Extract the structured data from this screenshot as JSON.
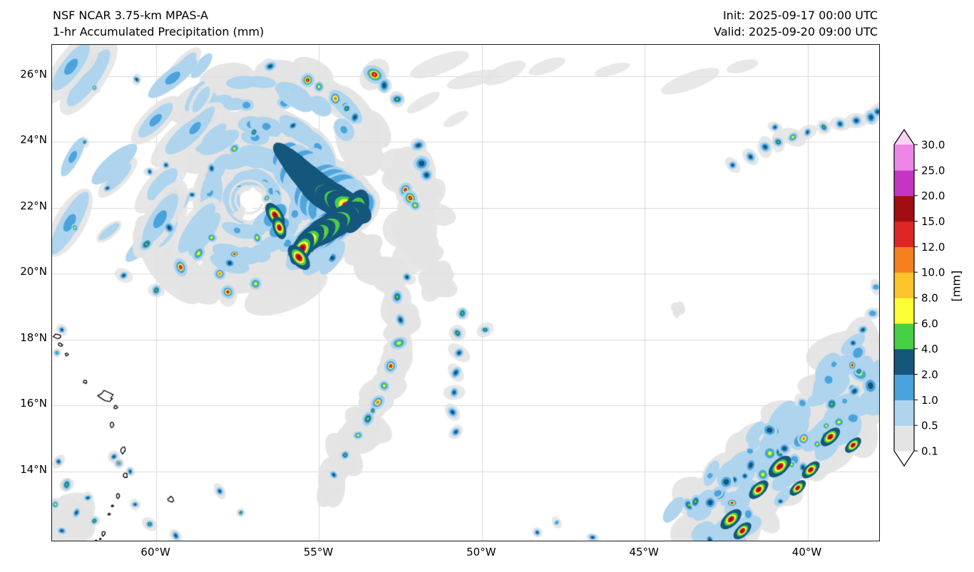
{
  "header": {
    "model_line": "NSF NCAR 3.75-km MPAS-A",
    "product_line": "1-hr Accumulated Precipitation (mm)",
    "init_line": "Init: 2025-09-17 00:00 UTC",
    "valid_line": "Valid: 2025-09-20 09:00 UTC"
  },
  "chart_data": {
    "type": "heatmap",
    "title": "1-hr Accumulated Precipitation (mm)",
    "model": "NSF NCAR 3.75-km MPAS-A",
    "init_time": "2025-09-17 00:00 UTC",
    "valid_time": "2025-09-20 09:00 UTC",
    "units": "mm",
    "xlabel": "",
    "ylabel": "",
    "grid": true,
    "grid_color": "#d9d9d9",
    "lon_range": [
      -63.2,
      -37.8
    ],
    "lat_range": [
      11.9,
      26.95
    ],
    "x_ticks": [
      {
        "lon": -60,
        "label": "60°W"
      },
      {
        "lon": -55,
        "label": "55°W"
      },
      {
        "lon": -50,
        "label": "50°W"
      },
      {
        "lon": -45,
        "label": "45°W"
      },
      {
        "lon": -40,
        "label": "40°W"
      }
    ],
    "y_ticks": [
      {
        "lat": 26,
        "label": "26°N"
      },
      {
        "lat": 24,
        "label": "24°N"
      },
      {
        "lat": 22,
        "label": "22°N"
      },
      {
        "lat": 20,
        "label": "20°N"
      },
      {
        "lat": 18,
        "label": "18°N"
      },
      {
        "lat": 16,
        "label": "16°N"
      },
      {
        "lat": 14,
        "label": "14°N"
      }
    ],
    "colorbar": {
      "label": "[mm]",
      "levels": [
        0.1,
        0.5,
        1.0,
        2.0,
        4.0,
        6.0,
        8.0,
        10.0,
        12.0,
        15.0,
        20.0,
        25.0,
        30.0
      ],
      "tick_labels": [
        "0.1",
        "0.5",
        "1.0",
        "2.0",
        "4.0",
        "6.0",
        "8.0",
        "10.0",
        "12.0",
        "15.0",
        "20.0",
        "25.0",
        "30.0"
      ],
      "colors": [
        "#e4e4e4",
        "#aed4ee",
        "#4aa3dc",
        "#15567d",
        "#45d045",
        "#fdfd35",
        "#fcc32a",
        "#f58020",
        "#e02622",
        "#a00d12",
        "#c435c4",
        "#ee86e8"
      ],
      "under_color": "#ffffff",
      "over_color": "#fad2f3",
      "position": "right"
    },
    "palette": {
      "gray": "#e4e4e4",
      "lightblue": "#aed4ee",
      "midblue": "#4aa3dc",
      "darkblue": "#15567d",
      "green": "#45d045",
      "yellow": "#fdfd35",
      "amber": "#fcc32a",
      "orange": "#f58020",
      "red": "#e02622",
      "darkred": "#a00d12",
      "magenta": "#c435c4",
      "orchid": "#ee86e8",
      "pink": "#fad2f3"
    },
    "features": {
      "summary": "Tropical cyclone near 22.3N 57.1W with eye, heavy eyewall band (15-30+ mm) ENE of center, spiral rainbands; outer band arcing south near 52-55W; scattered convection band in SE corner (38-43W, 12-17N); weak cell line near 24N 38-42W; Lesser Antilles coastlines on west edge",
      "storm_center": [
        -57.15,
        22.25
      ],
      "eye": {
        "lon": -57.15,
        "lat": 22.25,
        "r": 0.28
      },
      "gray_arcs": [
        {
          "r0": 0.55,
          "r1": 1.0,
          "b0": -120,
          "b1": 210,
          "n": 38,
          "sz": 0.3,
          "skip": 0.0
        },
        {
          "r0": 1.1,
          "r1": 1.95,
          "b0": -100,
          "b1": 225,
          "n": 44,
          "sz": 0.42,
          "skip": 0.05
        },
        {
          "r0": 2.0,
          "r1": 2.95,
          "b0": -55,
          "b1": 150,
          "n": 30,
          "sz": 0.5,
          "skip": 0.05
        },
        {
          "r0": 2.2,
          "r1": 3.3,
          "b0": 150,
          "b1": 255,
          "n": 22,
          "sz": 0.42,
          "skip": 0.1
        },
        {
          "r0": 3.0,
          "r1": 4.35,
          "b0": -30,
          "b1": 60,
          "n": 18,
          "sz": 0.5,
          "skip": 0.1
        }
      ],
      "blue_arcs": [
        {
          "r0": 0.5,
          "r1": 0.95,
          "b0": -110,
          "b1": 200,
          "n": 30,
          "sz": 0.17,
          "skip": 0.0
        },
        {
          "r0": 1.15,
          "r1": 1.8,
          "b0": -90,
          "b1": 210,
          "n": 34,
          "sz": 0.2,
          "skip": 0.1
        },
        {
          "r0": 1.95,
          "r1": 2.8,
          "b0": -40,
          "b1": 130,
          "n": 24,
          "sz": 0.22,
          "skip": 0.1
        },
        {
          "r0": 2.9,
          "r1": 4.1,
          "b0": -25,
          "b1": 55,
          "n": 16,
          "sz": 0.2,
          "skip": 0.15
        }
      ],
      "heavy_chain": [
        [
          -56.05,
          23.62,
          0.15
        ],
        [
          -55.85,
          23.42,
          0.19
        ],
        [
          -55.66,
          23.22,
          0.22
        ],
        [
          -55.47,
          23.02,
          0.24
        ],
        [
          -55.27,
          22.83,
          0.26
        ],
        [
          -55.07,
          22.64,
          0.28
        ],
        [
          -54.86,
          22.46,
          0.3
        ],
        [
          -54.6,
          22.3,
          0.3
        ],
        [
          -54.34,
          22.16,
          0.28
        ],
        [
          -54.08,
          22.02,
          0.25
        ],
        [
          -53.88,
          21.9,
          0.23
        ],
        [
          -54.2,
          21.7,
          0.24
        ],
        [
          -54.5,
          21.52,
          0.26
        ],
        [
          -54.8,
          21.34,
          0.25
        ],
        [
          -55.08,
          21.18,
          0.22
        ],
        [
          -55.32,
          21.0,
          0.2
        ],
        [
          -55.52,
          20.76,
          0.18
        ],
        [
          -55.62,
          20.5,
          0.15
        ],
        [
          -56.35,
          21.78,
          0.14
        ],
        [
          -56.22,
          21.4,
          0.12
        ]
      ],
      "se_heavy": [
        [
          -42.35,
          12.55,
          0.13
        ],
        [
          -41.5,
          13.45,
          0.12
        ],
        [
          -40.85,
          14.15,
          0.14
        ],
        [
          -39.9,
          14.05,
          0.11
        ],
        [
          -39.3,
          15.05,
          0.12
        ],
        [
          -38.6,
          14.8,
          0.1
        ],
        [
          -42.0,
          12.2,
          0.11
        ],
        [
          -40.3,
          13.5,
          0.1
        ]
      ],
      "cells": [
        [
          -59.25,
          20.2,
          0.13,
          5
        ],
        [
          -58.7,
          20.62,
          0.11,
          3
        ],
        [
          -58.05,
          20.0,
          0.12,
          4
        ],
        [
          -57.8,
          19.45,
          0.13,
          5
        ],
        [
          -56.95,
          19.7,
          0.12,
          3
        ],
        [
          -60.3,
          20.9,
          0.1,
          2
        ],
        [
          -61.0,
          19.95,
          0.09,
          1
        ],
        [
          -60.0,
          19.5,
          0.09,
          2
        ],
        [
          -59.6,
          21.4,
          0.1,
          1
        ],
        [
          -58.3,
          21.1,
          0.09,
          3
        ],
        [
          -55.35,
          25.88,
          0.14,
          6
        ],
        [
          -55.0,
          25.68,
          0.11,
          3
        ],
        [
          -54.5,
          25.32,
          0.13,
          4
        ],
        [
          -54.15,
          25.02,
          0.1,
          2
        ],
        [
          -53.3,
          26.05,
          0.17,
          6
        ],
        [
          -53.0,
          25.72,
          0.11,
          1
        ],
        [
          -52.6,
          25.3,
          0.1,
          2
        ],
        [
          -53.9,
          24.75,
          0.1,
          1
        ],
        [
          -56.5,
          26.3,
          0.09,
          1
        ],
        [
          -52.35,
          22.55,
          0.13,
          5
        ],
        [
          -52.2,
          22.3,
          0.14,
          6
        ],
        [
          -52.05,
          22.08,
          0.11,
          3
        ],
        [
          -51.85,
          23.35,
          0.16,
          1
        ],
        [
          -51.7,
          23.0,
          0.12,
          1
        ],
        [
          -51.95,
          23.9,
          0.1,
          1
        ],
        [
          -57.6,
          23.8,
          0.09,
          3
        ],
        [
          -58.3,
          23.2,
          0.08,
          1
        ],
        [
          -57.0,
          24.3,
          0.08,
          2
        ],
        [
          -55.8,
          24.5,
          0.08,
          1
        ],
        [
          -56.9,
          21.1,
          0.09,
          3
        ],
        [
          -57.6,
          20.6,
          0.08,
          5
        ],
        [
          -58.9,
          22.4,
          0.08,
          1
        ],
        [
          -59.7,
          23.3,
          0.07,
          1
        ],
        [
          -56.6,
          22.3,
          0.08,
          3
        ],
        [
          -52.6,
          19.3,
          0.11,
          2
        ],
        [
          -52.5,
          18.6,
          0.09,
          1
        ],
        [
          -52.55,
          17.9,
          0.12,
          3
        ],
        [
          -52.8,
          17.2,
          0.13,
          5
        ],
        [
          -53.0,
          16.6,
          0.11,
          3
        ],
        [
          -53.2,
          16.1,
          0.12,
          4
        ],
        [
          -53.5,
          15.6,
          0.11,
          2
        ],
        [
          -53.8,
          15.1,
          0.1,
          3
        ],
        [
          -54.2,
          14.5,
          0.09,
          2
        ],
        [
          -54.55,
          13.9,
          0.09,
          1
        ],
        [
          -52.3,
          19.9,
          0.09,
          1
        ],
        [
          -53.35,
          15.85,
          0.08,
          2
        ],
        [
          -50.75,
          18.2,
          0.11,
          2
        ],
        [
          -50.7,
          17.6,
          0.1,
          1
        ],
        [
          -50.8,
          17.0,
          0.09,
          1
        ],
        [
          -50.85,
          16.4,
          0.1,
          1
        ],
        [
          -50.9,
          15.8,
          0.09,
          1
        ],
        [
          -50.8,
          15.2,
          0.08,
          1
        ],
        [
          -50.6,
          18.8,
          0.09,
          2
        ],
        [
          -49.9,
          18.3,
          0.09,
          2
        ],
        [
          -62.75,
          13.6,
          0.09,
          2
        ],
        [
          -62.1,
          13.2,
          0.08,
          1
        ],
        [
          -62.45,
          12.75,
          0.07,
          1
        ],
        [
          -61.9,
          12.5,
          0.07,
          2
        ],
        [
          -61.3,
          14.45,
          0.08,
          1
        ],
        [
          -61.15,
          14.25,
          0.07,
          5
        ],
        [
          -60.65,
          13.0,
          0.07,
          1
        ],
        [
          -60.2,
          12.4,
          0.08,
          2
        ],
        [
          -59.4,
          12.05,
          0.07,
          1
        ],
        [
          -63.0,
          14.3,
          0.07,
          1
        ],
        [
          -62.9,
          12.2,
          0.09,
          1
        ],
        [
          -60.8,
          14.0,
          0.06,
          1
        ],
        [
          -63.1,
          13.0,
          0.07,
          3
        ],
        [
          -58.05,
          13.4,
          0.07,
          1
        ],
        [
          -57.4,
          12.75,
          0.06,
          2
        ],
        [
          -48.3,
          12.15,
          0.07,
          1
        ],
        [
          -47.7,
          12.45,
          0.06,
          0
        ],
        [
          -46.6,
          12.0,
          0.06,
          1
        ],
        [
          -41.75,
          23.55,
          0.09,
          1
        ],
        [
          -41.3,
          23.85,
          0.1,
          1
        ],
        [
          -40.9,
          24.0,
          0.09,
          2
        ],
        [
          -40.45,
          24.15,
          0.11,
          3
        ],
        [
          -40.0,
          24.3,
          0.09,
          1
        ],
        [
          -39.5,
          24.45,
          0.1,
          2
        ],
        [
          -39.0,
          24.55,
          0.09,
          1
        ],
        [
          -38.5,
          24.65,
          0.1,
          1
        ],
        [
          -38.05,
          24.75,
          0.11,
          1
        ],
        [
          -37.85,
          24.92,
          0.1,
          1
        ],
        [
          -42.3,
          23.3,
          0.08,
          1
        ],
        [
          -41.0,
          24.45,
          0.07,
          1
        ],
        [
          -61.9,
          25.65,
          0.06,
          3
        ],
        [
          -60.6,
          25.9,
          0.06,
          1
        ],
        [
          -62.2,
          24.0,
          0.06,
          2
        ],
        [
          -61.5,
          22.6,
          0.06,
          1
        ],
        [
          -62.5,
          21.4,
          0.06,
          3
        ],
        [
          -60.2,
          23.1,
          0.06,
          1
        ],
        [
          -62.9,
          18.3,
          0.07,
          1
        ],
        [
          -63.05,
          17.6,
          0.06,
          0
        ],
        [
          -38.3,
          18.3,
          0.1,
          1
        ],
        [
          -38.0,
          18.8,
          0.08,
          0
        ],
        [
          -38.6,
          17.9,
          0.08,
          1
        ],
        [
          -37.9,
          19.6,
          0.07,
          0
        ]
      ],
      "south_band": {
        "path": [
          [
            -53.9,
            20.9
          ],
          [
            -53.2,
            20.2
          ],
          [
            -52.7,
            19.5
          ],
          [
            -52.45,
            18.7
          ],
          [
            -52.5,
            17.9
          ],
          [
            -52.75,
            17.1
          ],
          [
            -53.1,
            16.3
          ],
          [
            -53.55,
            15.5
          ],
          [
            -54.05,
            14.7
          ],
          [
            -54.5,
            13.95
          ],
          [
            -54.8,
            13.3
          ]
        ]
      },
      "se_band": {
        "p0": [
          -43.6,
          11.95
        ],
        "p1": [
          -37.9,
          17.2
        ],
        "halfwidth": 1.05,
        "n_gray": 42,
        "n_blue": 60,
        "n_cells": 48,
        "core_weights": [
          [
            0,
            0.26
          ],
          [
            1,
            0.3
          ],
          [
            2,
            0.15
          ],
          [
            3,
            0.13
          ],
          [
            4,
            0.09
          ],
          [
            5,
            0.07
          ]
        ]
      },
      "nw_streaks": {
        "lon": [
          -62.9,
          -58.2
        ],
        "lat": [
          20.8,
          26.6
        ],
        "n": 26
      },
      "gray_patches": [
        [
          -52.0,
          21.0,
          0.65
        ],
        [
          -51.8,
          22.2,
          0.55
        ],
        [
          -52.2,
          23.0,
          0.5
        ],
        [
          -62.6,
          12.15,
          0.7
        ],
        [
          -51.4,
          19.9,
          0.4
        ],
        [
          -44.0,
          18.9,
          0.15
        ]
      ],
      "gray_wisps": [
        [
          -51.3,
          26.35,
          0.28,
          -20
        ],
        [
          -50.3,
          25.9,
          0.22,
          -15
        ],
        [
          -49.3,
          26.1,
          0.26,
          -25
        ],
        [
          -48.0,
          26.3,
          0.2,
          -20
        ],
        [
          -46.0,
          26.2,
          0.16,
          -15
        ],
        [
          -51.8,
          25.2,
          0.18,
          -30
        ],
        [
          -43.6,
          25.85,
          0.26,
          -20
        ],
        [
          -42.0,
          26.3,
          0.18,
          -15
        ],
        [
          -50.8,
          24.7,
          0.16,
          -30
        ]
      ],
      "islands": [
        [
          -63.05,
          18.1,
          0.07,
          1.6,
          10
        ],
        [
          -62.95,
          17.85,
          0.05,
          1.3,
          0
        ],
        [
          -62.75,
          17.55,
          0.04,
          1,
          0
        ],
        [
          -62.18,
          16.72,
          0.05,
          1,
          0
        ],
        [
          -61.55,
          16.28,
          0.16,
          1.3,
          20
        ],
        [
          -61.25,
          15.95,
          0.05,
          1,
          0
        ],
        [
          -61.35,
          15.42,
          0.09,
          0.6,
          0
        ],
        [
          -61.02,
          14.64,
          0.1,
          0.7,
          15
        ],
        [
          -60.95,
          13.88,
          0.08,
          0.7,
          0
        ],
        [
          -61.18,
          13.25,
          0.07,
          0.7,
          10
        ],
        [
          -61.35,
          12.95,
          0.03,
          1,
          0
        ],
        [
          -61.45,
          12.7,
          0.03,
          1,
          0
        ],
        [
          -61.62,
          12.12,
          0.07,
          0.8,
          20
        ],
        [
          -59.55,
          13.15,
          0.08,
          1.1,
          30
        ],
        [
          -61.72,
          11.95,
          0.02,
          1,
          0
        ],
        [
          -61.85,
          11.9,
          0.02,
          1,
          0
        ]
      ],
      "coastline_note": "Lesser Antilles island chain outlined in black along ~61-63W from 18N to 12N; Barbados near 59.5W 13.2N"
    }
  }
}
